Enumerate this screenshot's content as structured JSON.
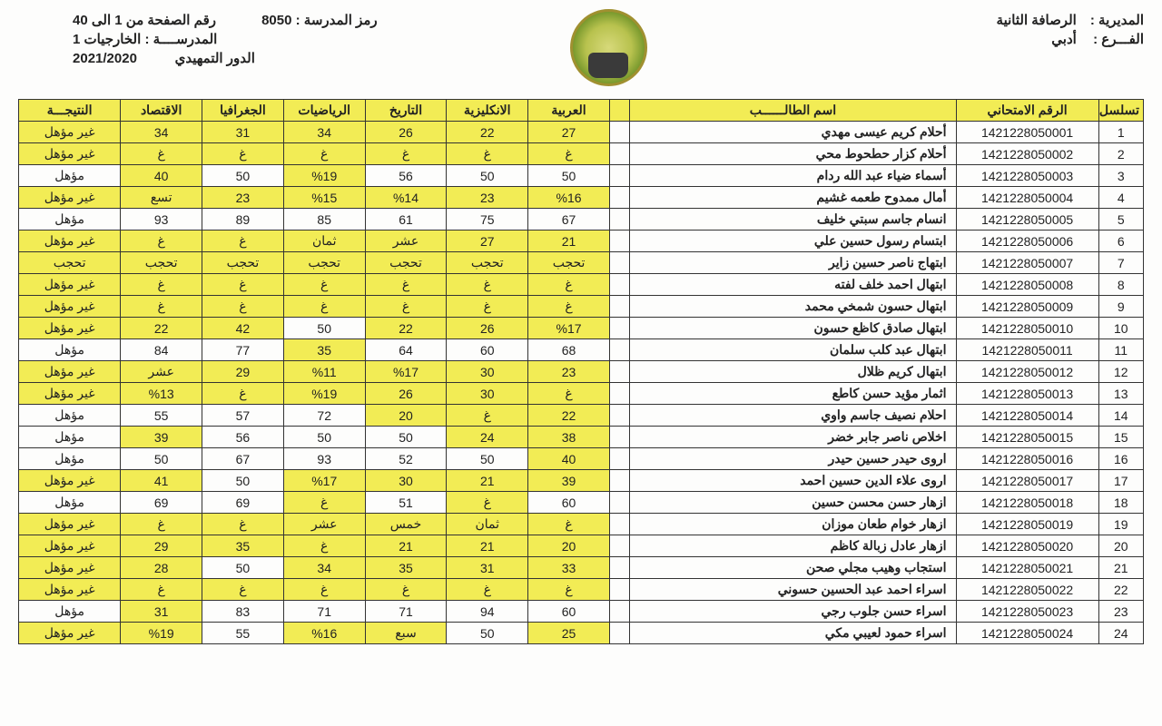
{
  "colors": {
    "highlight": "#f2ec55",
    "border": "#333333",
    "bg": "#fdfdfc",
    "text": "#222222"
  },
  "header": {
    "right": [
      {
        "label": "المديرية :",
        "value": "الرصافة الثانية"
      },
      {
        "label": "الفـــرع :",
        "value": "أدبي"
      }
    ],
    "center": [
      {
        "label": "رمز المدرسة :",
        "value": "8050"
      },
      {
        "label": "المدرســــة :",
        "value": "الخارجيات 1"
      },
      {
        "label": "الدور التمهيدي",
        "value": "2021/2020"
      }
    ],
    "left": [
      {
        "label": "رقم الصفحة من 1 الى 40",
        "value": ""
      }
    ]
  },
  "columns": [
    {
      "key": "seq",
      "label": "تسلسل"
    },
    {
      "key": "exam",
      "label": "الرقم الامتحاني"
    },
    {
      "key": "name",
      "label": "اسم الطالــــــب"
    },
    {
      "key": "blank",
      "label": ""
    },
    {
      "key": "arabic",
      "label": "العربية"
    },
    {
      "key": "english",
      "label": "الانكليزية"
    },
    {
      "key": "history",
      "label": "التاريخ"
    },
    {
      "key": "math",
      "label": "الرياضيات"
    },
    {
      "key": "geo",
      "label": "الجغرافيا"
    },
    {
      "key": "econ",
      "label": "الاقتصاد"
    },
    {
      "key": "result",
      "label": "النتيجـــة"
    }
  ],
  "rows": [
    {
      "seq": "1",
      "exam": "1421228050001",
      "name": "أحلام كريم عيسى مهدي",
      "arabic": {
        "v": "27",
        "hl": true
      },
      "english": {
        "v": "22",
        "hl": true
      },
      "history": {
        "v": "26",
        "hl": true
      },
      "math": {
        "v": "34",
        "hl": true
      },
      "geo": {
        "v": "31",
        "hl": true
      },
      "econ": {
        "v": "34",
        "hl": true
      },
      "result": {
        "v": "غير مؤهل",
        "hl": true
      }
    },
    {
      "seq": "2",
      "exam": "1421228050002",
      "name": "أحلام كزار حطحوط محي",
      "arabic": {
        "v": "غ",
        "hl": true
      },
      "english": {
        "v": "غ",
        "hl": true
      },
      "history": {
        "v": "غ",
        "hl": true
      },
      "math": {
        "v": "غ",
        "hl": true
      },
      "geo": {
        "v": "غ",
        "hl": true
      },
      "econ": {
        "v": "غ",
        "hl": true
      },
      "result": {
        "v": "غير مؤهل",
        "hl": true
      }
    },
    {
      "seq": "3",
      "exam": "1421228050003",
      "name": "أسماء ضياء عبد الله ردام",
      "arabic": {
        "v": "50",
        "hl": false
      },
      "english": {
        "v": "50",
        "hl": false
      },
      "history": {
        "v": "56",
        "hl": false
      },
      "math": {
        "v": "%19",
        "hl": true
      },
      "geo": {
        "v": "50",
        "hl": false
      },
      "econ": {
        "v": "40",
        "hl": true
      },
      "result": {
        "v": "مؤهل",
        "hl": false
      }
    },
    {
      "seq": "4",
      "exam": "1421228050004",
      "name": "أمال ممدوح طعمه غشيم",
      "arabic": {
        "v": "%16",
        "hl": true
      },
      "english": {
        "v": "23",
        "hl": true
      },
      "history": {
        "v": "%14",
        "hl": true
      },
      "math": {
        "v": "%15",
        "hl": true
      },
      "geo": {
        "v": "23",
        "hl": true
      },
      "econ": {
        "v": "تسع",
        "hl": true
      },
      "result": {
        "v": "غير مؤهل",
        "hl": true
      }
    },
    {
      "seq": "5",
      "exam": "1421228050005",
      "name": "انسام جاسم سبتي خليف",
      "arabic": {
        "v": "67",
        "hl": false
      },
      "english": {
        "v": "75",
        "hl": false
      },
      "history": {
        "v": "61",
        "hl": false
      },
      "math": {
        "v": "85",
        "hl": false
      },
      "geo": {
        "v": "89",
        "hl": false
      },
      "econ": {
        "v": "93",
        "hl": false
      },
      "result": {
        "v": "مؤهل",
        "hl": false
      }
    },
    {
      "seq": "6",
      "exam": "1421228050006",
      "name": "ابتسام رسول حسين علي",
      "arabic": {
        "v": "21",
        "hl": true
      },
      "english": {
        "v": "27",
        "hl": true
      },
      "history": {
        "v": "عشر",
        "hl": true
      },
      "math": {
        "v": "ثمان",
        "hl": true
      },
      "geo": {
        "v": "غ",
        "hl": true
      },
      "econ": {
        "v": "غ",
        "hl": true
      },
      "result": {
        "v": "غير مؤهل",
        "hl": true
      }
    },
    {
      "seq": "7",
      "exam": "1421228050007",
      "name": "ابتهاج ناصر حسين زاير",
      "arabic": {
        "v": "تحجب",
        "hl": true
      },
      "english": {
        "v": "تحجب",
        "hl": true
      },
      "history": {
        "v": "تحجب",
        "hl": true
      },
      "math": {
        "v": "تحجب",
        "hl": true
      },
      "geo": {
        "v": "تحجب",
        "hl": true
      },
      "econ": {
        "v": "تحجب",
        "hl": true
      },
      "result": {
        "v": "تحجب",
        "hl": true
      }
    },
    {
      "seq": "8",
      "exam": "1421228050008",
      "name": "ابتهال احمد خلف لفته",
      "arabic": {
        "v": "غ",
        "hl": true
      },
      "english": {
        "v": "غ",
        "hl": true
      },
      "history": {
        "v": "غ",
        "hl": true
      },
      "math": {
        "v": "غ",
        "hl": true
      },
      "geo": {
        "v": "غ",
        "hl": true
      },
      "econ": {
        "v": "غ",
        "hl": true
      },
      "result": {
        "v": "غير مؤهل",
        "hl": true
      }
    },
    {
      "seq": "9",
      "exam": "1421228050009",
      "name": "ابتهال حسون شمخي محمد",
      "arabic": {
        "v": "غ",
        "hl": true
      },
      "english": {
        "v": "غ",
        "hl": true
      },
      "history": {
        "v": "غ",
        "hl": true
      },
      "math": {
        "v": "غ",
        "hl": true
      },
      "geo": {
        "v": "غ",
        "hl": true
      },
      "econ": {
        "v": "غ",
        "hl": true
      },
      "result": {
        "v": "غير مؤهل",
        "hl": true
      }
    },
    {
      "seq": "10",
      "exam": "1421228050010",
      "name": "ابتهال صادق كاظع حسون",
      "arabic": {
        "v": "%17",
        "hl": true
      },
      "english": {
        "v": "26",
        "hl": true
      },
      "history": {
        "v": "22",
        "hl": true
      },
      "math": {
        "v": "50",
        "hl": false
      },
      "geo": {
        "v": "42",
        "hl": true
      },
      "econ": {
        "v": "22",
        "hl": true
      },
      "result": {
        "v": "غير مؤهل",
        "hl": true
      }
    },
    {
      "seq": "11",
      "exam": "1421228050011",
      "name": "ابتهال عبد كلب سلمان",
      "arabic": {
        "v": "68",
        "hl": false
      },
      "english": {
        "v": "60",
        "hl": false
      },
      "history": {
        "v": "64",
        "hl": false
      },
      "math": {
        "v": "35",
        "hl": true
      },
      "geo": {
        "v": "77",
        "hl": false
      },
      "econ": {
        "v": "84",
        "hl": false
      },
      "result": {
        "v": "مؤهل",
        "hl": false
      }
    },
    {
      "seq": "12",
      "exam": "1421228050012",
      "name": "ابتهال كريم ظلال",
      "arabic": {
        "v": "23",
        "hl": true
      },
      "english": {
        "v": "30",
        "hl": true
      },
      "history": {
        "v": "%17",
        "hl": true
      },
      "math": {
        "v": "%11",
        "hl": true
      },
      "geo": {
        "v": "29",
        "hl": true
      },
      "econ": {
        "v": "عشر",
        "hl": true
      },
      "result": {
        "v": "غير مؤهل",
        "hl": true
      }
    },
    {
      "seq": "13",
      "exam": "1421228050013",
      "name": "اثمار مؤيد حسن كاطع",
      "arabic": {
        "v": "غ",
        "hl": true
      },
      "english": {
        "v": "30",
        "hl": true
      },
      "history": {
        "v": "26",
        "hl": true
      },
      "math": {
        "v": "%19",
        "hl": true
      },
      "geo": {
        "v": "غ",
        "hl": true
      },
      "econ": {
        "v": "%13",
        "hl": true
      },
      "result": {
        "v": "غير مؤهل",
        "hl": true
      }
    },
    {
      "seq": "14",
      "exam": "1421228050014",
      "name": "احلام نصيف جاسم واوي",
      "arabic": {
        "v": "22",
        "hl": true
      },
      "english": {
        "v": "غ",
        "hl": true
      },
      "history": {
        "v": "20",
        "hl": true
      },
      "math": {
        "v": "72",
        "hl": false
      },
      "geo": {
        "v": "57",
        "hl": false
      },
      "econ": {
        "v": "55",
        "hl": false
      },
      "result": {
        "v": "مؤهل",
        "hl": false
      }
    },
    {
      "seq": "15",
      "exam": "1421228050015",
      "name": "اخلاص ناصر جابر خضر",
      "arabic": {
        "v": "38",
        "hl": true
      },
      "english": {
        "v": "24",
        "hl": true
      },
      "history": {
        "v": "50",
        "hl": false
      },
      "math": {
        "v": "50",
        "hl": false
      },
      "geo": {
        "v": "56",
        "hl": false
      },
      "econ": {
        "v": "39",
        "hl": true
      },
      "result": {
        "v": "مؤهل",
        "hl": false
      }
    },
    {
      "seq": "16",
      "exam": "1421228050016",
      "name": "اروى حيدر حسين حيدر",
      "arabic": {
        "v": "40",
        "hl": true
      },
      "english": {
        "v": "50",
        "hl": false
      },
      "history": {
        "v": "52",
        "hl": false
      },
      "math": {
        "v": "93",
        "hl": false
      },
      "geo": {
        "v": "67",
        "hl": false
      },
      "econ": {
        "v": "50",
        "hl": false
      },
      "result": {
        "v": "مؤهل",
        "hl": false
      }
    },
    {
      "seq": "17",
      "exam": "1421228050017",
      "name": "اروى علاء الدين حسين احمد",
      "arabic": {
        "v": "39",
        "hl": true
      },
      "english": {
        "v": "21",
        "hl": true
      },
      "history": {
        "v": "30",
        "hl": true
      },
      "math": {
        "v": "%17",
        "hl": true
      },
      "geo": {
        "v": "50",
        "hl": false
      },
      "econ": {
        "v": "41",
        "hl": true
      },
      "result": {
        "v": "غير مؤهل",
        "hl": true
      }
    },
    {
      "seq": "18",
      "exam": "1421228050018",
      "name": "ازهار حسن محسن حسين",
      "arabic": {
        "v": "60",
        "hl": false
      },
      "english": {
        "v": "غ",
        "hl": true
      },
      "history": {
        "v": "51",
        "hl": false
      },
      "math": {
        "v": "غ",
        "hl": true
      },
      "geo": {
        "v": "69",
        "hl": false
      },
      "econ": {
        "v": "69",
        "hl": false
      },
      "result": {
        "v": "مؤهل",
        "hl": false
      }
    },
    {
      "seq": "19",
      "exam": "1421228050019",
      "name": "ازهار خوام طعان موزان",
      "arabic": {
        "v": "غ",
        "hl": true
      },
      "english": {
        "v": "ثمان",
        "hl": true
      },
      "history": {
        "v": "خمس",
        "hl": true
      },
      "math": {
        "v": "عشر",
        "hl": true
      },
      "geo": {
        "v": "غ",
        "hl": true
      },
      "econ": {
        "v": "غ",
        "hl": true
      },
      "result": {
        "v": "غير مؤهل",
        "hl": true
      }
    },
    {
      "seq": "20",
      "exam": "1421228050020",
      "name": "ازهار عادل زبالة كاظم",
      "arabic": {
        "v": "20",
        "hl": true
      },
      "english": {
        "v": "21",
        "hl": true
      },
      "history": {
        "v": "21",
        "hl": true
      },
      "math": {
        "v": "غ",
        "hl": true
      },
      "geo": {
        "v": "35",
        "hl": true
      },
      "econ": {
        "v": "29",
        "hl": true
      },
      "result": {
        "v": "غير مؤهل",
        "hl": true
      }
    },
    {
      "seq": "21",
      "exam": "1421228050021",
      "name": "استجاب وهيب مجلي صحن",
      "arabic": {
        "v": "33",
        "hl": true
      },
      "english": {
        "v": "31",
        "hl": true
      },
      "history": {
        "v": "35",
        "hl": true
      },
      "math": {
        "v": "34",
        "hl": true
      },
      "geo": {
        "v": "50",
        "hl": false
      },
      "econ": {
        "v": "28",
        "hl": true
      },
      "result": {
        "v": "غير مؤهل",
        "hl": true
      }
    },
    {
      "seq": "22",
      "exam": "1421228050022",
      "name": "اسراء احمد عبد الحسين حسوني",
      "arabic": {
        "v": "غ",
        "hl": true
      },
      "english": {
        "v": "غ",
        "hl": true
      },
      "history": {
        "v": "غ",
        "hl": true
      },
      "math": {
        "v": "غ",
        "hl": true
      },
      "geo": {
        "v": "غ",
        "hl": true
      },
      "econ": {
        "v": "غ",
        "hl": true
      },
      "result": {
        "v": "غير مؤهل",
        "hl": true
      }
    },
    {
      "seq": "23",
      "exam": "1421228050023",
      "name": "اسراء حسن جلوب رجي",
      "arabic": {
        "v": "60",
        "hl": false
      },
      "english": {
        "v": "94",
        "hl": false
      },
      "history": {
        "v": "71",
        "hl": false
      },
      "math": {
        "v": "71",
        "hl": false
      },
      "geo": {
        "v": "83",
        "hl": false
      },
      "econ": {
        "v": "31",
        "hl": true
      },
      "result": {
        "v": "مؤهل",
        "hl": false
      }
    },
    {
      "seq": "24",
      "exam": "1421228050024",
      "name": "اسراء حمود لعيبي مكي",
      "arabic": {
        "v": "25",
        "hl": true
      },
      "english": {
        "v": "50",
        "hl": false
      },
      "history": {
        "v": "سبع",
        "hl": true
      },
      "math": {
        "v": "%16",
        "hl": true
      },
      "geo": {
        "v": "55",
        "hl": false
      },
      "econ": {
        "v": "%19",
        "hl": true
      },
      "result": {
        "v": "غير مؤهل",
        "hl": true
      }
    }
  ]
}
